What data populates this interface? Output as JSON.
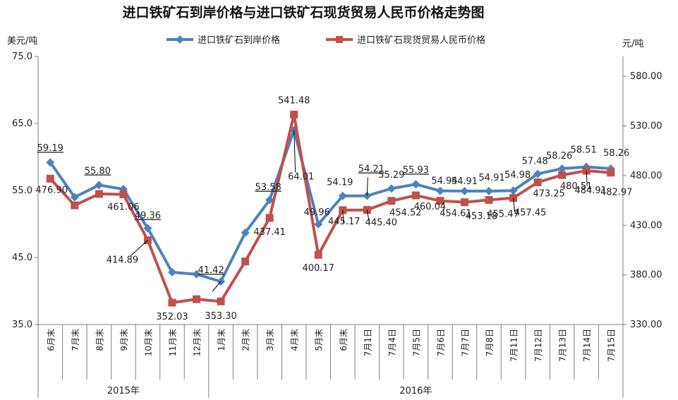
{
  "chart_data": {
    "type": "line",
    "title": "进口铁矿石到岸价格与进口铁矿石现货贸易人民币价格走势图",
    "y_left_label": "美元/吨",
    "y_right_label": "元/吨",
    "y_left_lim": [
      35.0,
      75.0
    ],
    "y_left_ticks": [
      "35.0",
      "45.0",
      "55.0",
      "65.0",
      "75.0"
    ],
    "y_right_lim": [
      330,
      600
    ],
    "y_right_ticks": [
      "330.00",
      "380.00",
      "430.00",
      "480.00",
      "530.00",
      "580.00"
    ],
    "categories": [
      "6月末",
      "7月末",
      "8月末",
      "9月末",
      "10月末",
      "11月末",
      "12月末",
      "1月末",
      "2月末",
      "3月末",
      "4月末",
      "5月末",
      "6月末",
      "7月1日",
      "7月4日",
      "7月5日",
      "7月6日",
      "7月7日",
      "7月8日",
      "7月11日",
      "7月12日",
      "7月13日",
      "7月14日",
      "7月15日"
    ],
    "year_groups": [
      {
        "label": "2015年",
        "start": 0,
        "end": 6
      },
      {
        "label": "2016年",
        "start": 7,
        "end": 23
      }
    ],
    "legend_position": "top-center",
    "series": [
      {
        "name": "进口铁矿石到岸价格",
        "axis": "left",
        "color": "#4F81BD",
        "marker": "diamond",
        "values": [
          59.19,
          54.0,
          55.8,
          55.2,
          49.36,
          42.8,
          42.5,
          41.42,
          48.7,
          53.58,
          64.01,
          49.96,
          54.19,
          54.21,
          55.29,
          55.93,
          54.94,
          54.91,
          54.91,
          54.98,
          57.48,
          58.26,
          58.51,
          58.26
        ],
        "labels": [
          "59.19",
          "",
          "55.80",
          "",
          "49.36",
          "",
          "",
          "41.42",
          "",
          "53.58",
          "64.01",
          "49.96",
          "54.19",
          "54.21",
          "55.29",
          "55.93",
          "54.94",
          "54.91",
          "54.91",
          "54.98",
          "57.48",
          "58.26",
          "58.51",
          "58.26"
        ]
      },
      {
        "name": "进口铁矿石现货贸易人民币价格",
        "axis": "right",
        "color": "#C0504D",
        "marker": "square",
        "values": [
          476.9,
          450.0,
          461.5,
          461.06,
          414.89,
          352.03,
          355.5,
          353.3,
          393.5,
          437.41,
          541.48,
          400.17,
          445.17,
          445.4,
          454.52,
          460.04,
          454.61,
          453.18,
          455.47,
          457.45,
          473.25,
          480.51,
          484.91,
          482.97
        ],
        "labels": [
          "476.90",
          "",
          "",
          "461.06",
          "414.89",
          "352.03",
          "",
          "353.30",
          "",
          "437.41",
          "541.48",
          "400.17",
          "445.17",
          "445.40",
          "454.52",
          "460.04",
          "454.61",
          "453.18",
          "455.47",
          "457.45",
          "473.25",
          "480.51",
          "484.91",
          "482.97"
        ]
      }
    ]
  }
}
